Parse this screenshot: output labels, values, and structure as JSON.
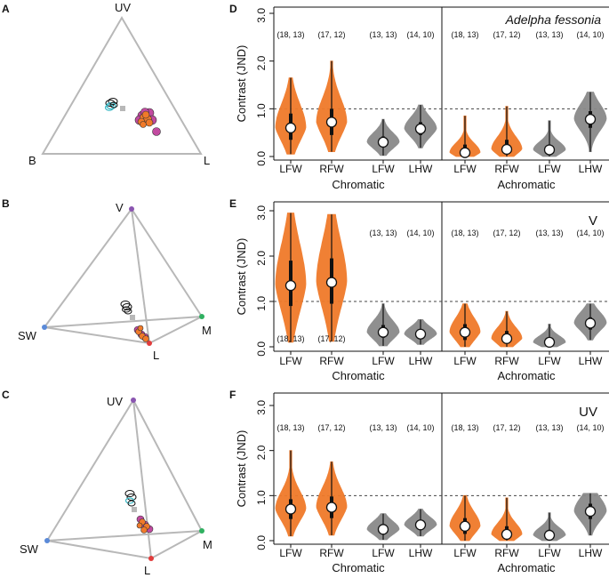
{
  "figure": {
    "panel_letters": [
      "A",
      "B",
      "C",
      "D",
      "E",
      "F"
    ],
    "triangle_labels": {
      "top": "UV",
      "left": "B",
      "right": "L"
    },
    "tetra_B_labels": {
      "top": "V",
      "left": "SW",
      "right": "M",
      "bottom": "L"
    },
    "tetra_C_labels": {
      "top": "UV",
      "left": "SW",
      "right": "M",
      "bottom": "L"
    },
    "species": "Adelpha fessonia",
    "colors": {
      "orange": "#f07a2a",
      "gray": "#8a8a8a",
      "cyan": "#35b6c4",
      "magenta": "#c24aa0",
      "purple": "#8a55b0",
      "blue": "#5a8ad8",
      "green": "#2fb060",
      "red": "#e23c3c",
      "tri_gray": "#b8b8b8"
    }
  },
  "chart_data": [
    {
      "panel": "D",
      "type": "violin",
      "vision_label": "",
      "ylabel": "Contrast (JND)",
      "ylim": [
        0,
        3.2
      ],
      "y_ticks": [
        "0.0",
        "1.0",
        "2.0",
        "3.0"
      ],
      "threshold": 1.0,
      "categories": [
        "LFW",
        "RFW",
        "LFW",
        "LHW"
      ],
      "groups": [
        "Chromatic",
        "Achromatic"
      ],
      "chromatic": [
        {
          "label": "LFW",
          "sample": "(18, 13)",
          "median": 0.6,
          "q1": 0.35,
          "q3": 0.9,
          "min": 0.05,
          "max": 1.65,
          "color": "orange",
          "sample_pos": "top"
        },
        {
          "label": "RFW",
          "sample": "(17, 12)",
          "median": 0.72,
          "q1": 0.45,
          "q3": 1.0,
          "min": 0.1,
          "max": 2.0,
          "color": "orange",
          "sample_pos": "top"
        },
        {
          "label": "LFW",
          "sample": "(13, 13)",
          "median": 0.3,
          "q1": 0.2,
          "q3": 0.42,
          "min": 0.02,
          "max": 0.78,
          "color": "gray",
          "sample_pos": "top"
        },
        {
          "label": "LHW",
          "sample": "(14, 10)",
          "median": 0.58,
          "q1": 0.45,
          "q3": 0.72,
          "min": 0.18,
          "max": 1.08,
          "color": "gray",
          "sample_pos": "top"
        }
      ],
      "achromatic": [
        {
          "label": "LFW",
          "sample": "(18, 13)",
          "median": 0.08,
          "q1": 0.03,
          "q3": 0.25,
          "min": 0.0,
          "max": 0.85,
          "color": "orange",
          "sample_pos": "top"
        },
        {
          "label": "RFW",
          "sample": "(17, 12)",
          "median": 0.15,
          "q1": 0.06,
          "q3": 0.35,
          "min": 0.0,
          "max": 1.05,
          "color": "orange",
          "sample_pos": "top"
        },
        {
          "label": "LFW",
          "sample": "(13, 13)",
          "median": 0.14,
          "q1": 0.06,
          "q3": 0.25,
          "min": 0.0,
          "max": 0.75,
          "color": "gray",
          "sample_pos": "top"
        },
        {
          "label": "LHW",
          "sample": "(14, 10)",
          "median": 0.78,
          "q1": 0.6,
          "q3": 0.95,
          "min": 0.1,
          "max": 1.35,
          "color": "gray",
          "sample_pos": "top"
        }
      ]
    },
    {
      "panel": "E",
      "type": "violin",
      "vision_label": "V",
      "ylabel": "Contrast (JND)",
      "ylim": [
        0,
        3.1
      ],
      "y_ticks": [
        "0.0",
        "1.0",
        "2.0",
        "3.0"
      ],
      "threshold": 1.0,
      "categories": [
        "LFW",
        "RFW",
        "LFW",
        "LHW"
      ],
      "groups": [
        "Chromatic",
        "Achromatic"
      ],
      "chromatic": [
        {
          "label": "LFW",
          "sample": "(18, 13)",
          "median": 1.35,
          "q1": 0.9,
          "q3": 1.9,
          "min": 0.1,
          "max": 2.95,
          "color": "orange",
          "sample_pos": "bottom"
        },
        {
          "label": "RFW",
          "sample": "(17, 12)",
          "median": 1.42,
          "q1": 0.95,
          "q3": 1.95,
          "min": 0.12,
          "max": 2.92,
          "color": "orange",
          "sample_pos": "bottom"
        },
        {
          "label": "LFW",
          "sample": "(13, 13)",
          "median": 0.32,
          "q1": 0.2,
          "q3": 0.48,
          "min": 0.02,
          "max": 0.95,
          "color": "gray",
          "sample_pos": "top"
        },
        {
          "label": "LHW",
          "sample": "(14, 10)",
          "median": 0.28,
          "q1": 0.2,
          "q3": 0.38,
          "min": 0.05,
          "max": 0.6,
          "color": "gray",
          "sample_pos": "top"
        }
      ],
      "achromatic": [
        {
          "label": "LFW",
          "sample": "(18, 13)",
          "median": 0.32,
          "q1": 0.15,
          "q3": 0.5,
          "min": 0.0,
          "max": 0.95,
          "color": "orange",
          "sample_pos": "top"
        },
        {
          "label": "RFW",
          "sample": "(17, 12)",
          "median": 0.18,
          "q1": 0.08,
          "q3": 0.35,
          "min": 0.0,
          "max": 0.78,
          "color": "orange",
          "sample_pos": "top"
        },
        {
          "label": "LFW",
          "sample": "(13, 13)",
          "median": 0.1,
          "q1": 0.04,
          "q3": 0.2,
          "min": 0.0,
          "max": 0.5,
          "color": "gray",
          "sample_pos": "top"
        },
        {
          "label": "LHW",
          "sample": "(14, 10)",
          "median": 0.52,
          "q1": 0.38,
          "q3": 0.65,
          "min": 0.15,
          "max": 0.95,
          "color": "gray",
          "sample_pos": "top"
        }
      ]
    },
    {
      "panel": "F",
      "type": "violin",
      "vision_label": "UV",
      "ylabel": "Contrast (JND)",
      "ylim": [
        0,
        3.2
      ],
      "y_ticks": [
        "0.0",
        "1.0",
        "2.0",
        "3.0"
      ],
      "threshold": 1.0,
      "categories": [
        "LFW",
        "RFW",
        "LFW",
        "LHW"
      ],
      "groups": [
        "Chromatic",
        "Achromatic"
      ],
      "chromatic": [
        {
          "label": "LFW",
          "sample": "(18, 13)",
          "median": 0.7,
          "q1": 0.48,
          "q3": 0.92,
          "min": 0.1,
          "max": 2.0,
          "color": "orange",
          "sample_pos": "top"
        },
        {
          "label": "RFW",
          "sample": "(17, 12)",
          "median": 0.74,
          "q1": 0.5,
          "q3": 0.98,
          "min": 0.12,
          "max": 1.75,
          "color": "orange",
          "sample_pos": "top"
        },
        {
          "label": "LFW",
          "sample": "(13, 13)",
          "median": 0.25,
          "q1": 0.15,
          "q3": 0.35,
          "min": 0.02,
          "max": 0.6,
          "color": "gray",
          "sample_pos": "top"
        },
        {
          "label": "LHW",
          "sample": "(14, 10)",
          "median": 0.35,
          "q1": 0.26,
          "q3": 0.45,
          "min": 0.1,
          "max": 0.7,
          "color": "gray",
          "sample_pos": "top"
        }
      ],
      "achromatic": [
        {
          "label": "LFW",
          "sample": "(18, 13)",
          "median": 0.32,
          "q1": 0.15,
          "q3": 0.5,
          "min": 0.0,
          "max": 1.0,
          "color": "orange",
          "sample_pos": "top"
        },
        {
          "label": "RFW",
          "sample": "(17, 12)",
          "median": 0.14,
          "q1": 0.05,
          "q3": 0.32,
          "min": 0.0,
          "max": 0.95,
          "color": "orange",
          "sample_pos": "top"
        },
        {
          "label": "LFW",
          "sample": "(13, 13)",
          "median": 0.12,
          "q1": 0.05,
          "q3": 0.24,
          "min": 0.0,
          "max": 0.62,
          "color": "gray",
          "sample_pos": "top"
        },
        {
          "label": "LHW",
          "sample": "(14, 10)",
          "median": 0.65,
          "q1": 0.48,
          "q3": 0.82,
          "min": 0.12,
          "max": 1.05,
          "color": "gray",
          "sample_pos": "top"
        }
      ]
    }
  ]
}
